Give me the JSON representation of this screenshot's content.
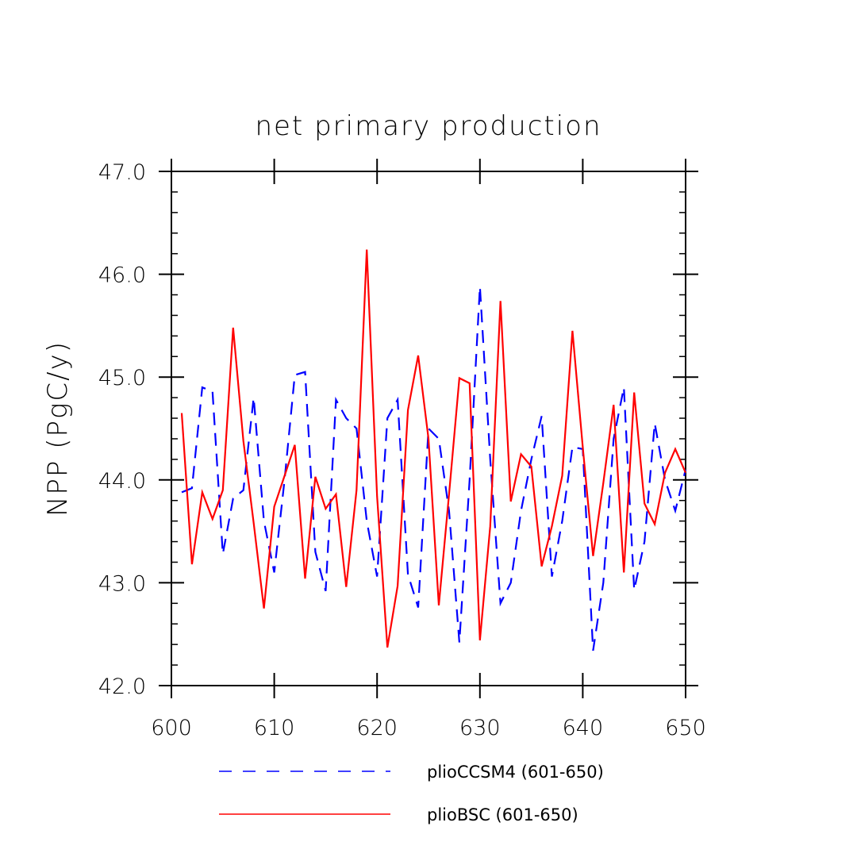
{
  "chart_data": {
    "type": "line",
    "title": "net primary production",
    "xlabel": "",
    "ylabel": "NPP  (PgC/y)",
    "xlim": [
      600,
      650
    ],
    "ylim": [
      42.0,
      47.0
    ],
    "x_ticks": [
      "600",
      "610",
      "620",
      "630",
      "640",
      "650"
    ],
    "y_ticks": [
      "42.0",
      "43.0",
      "44.0",
      "45.0",
      "46.0",
      "47.0"
    ],
    "grid": false,
    "legend_position": "bottom",
    "x": [
      601,
      602,
      603,
      604,
      605,
      606,
      607,
      608,
      609,
      610,
      611,
      612,
      613,
      614,
      615,
      616,
      617,
      618,
      619,
      620,
      621,
      622,
      623,
      624,
      625,
      626,
      627,
      628,
      629,
      630,
      631,
      632,
      633,
      634,
      635,
      636,
      637,
      638,
      639,
      640,
      641,
      642,
      643,
      644,
      645,
      646,
      647,
      648,
      649,
      650
    ],
    "series": [
      {
        "name": "plioCCSM4 (601-650)",
        "color": "#0000ff",
        "dash": "dashed",
        "values": [
          43.88,
          43.92,
          44.9,
          44.86,
          43.28,
          43.82,
          43.9,
          44.8,
          43.6,
          43.1,
          44.0,
          45.02,
          45.05,
          43.3,
          42.92,
          44.78,
          44.6,
          44.5,
          43.6,
          43.06,
          44.6,
          44.78,
          43.08,
          42.76,
          44.5,
          44.4,
          43.7,
          42.42,
          44.0,
          45.88,
          44.2,
          42.8,
          43.0,
          43.7,
          44.2,
          44.62,
          43.06,
          43.6,
          44.32,
          44.3,
          42.34,
          43.0,
          44.4,
          44.9,
          42.93,
          43.4,
          44.55,
          44.0,
          43.7,
          44.1
        ]
      },
      {
        "name": "plioBSC (601-650)",
        "color": "#ff0000",
        "dash": "solid",
        "values": [
          44.65,
          43.18,
          43.88,
          43.62,
          43.9,
          45.48,
          44.38,
          43.58,
          42.75,
          43.74,
          44.04,
          44.34,
          43.04,
          44.03,
          43.72,
          43.86,
          42.96,
          43.9,
          46.24,
          43.84,
          42.37,
          42.97,
          44.68,
          45.21,
          44.4,
          42.78,
          43.86,
          44.99,
          44.94,
          42.44,
          43.55,
          45.74,
          43.79,
          44.25,
          44.13,
          43.16,
          43.55,
          44.04,
          45.45,
          44.32,
          43.26,
          43.97,
          44.73,
          43.1,
          44.85,
          43.77,
          43.57,
          44.07,
          44.3,
          44.07
        ]
      }
    ]
  }
}
